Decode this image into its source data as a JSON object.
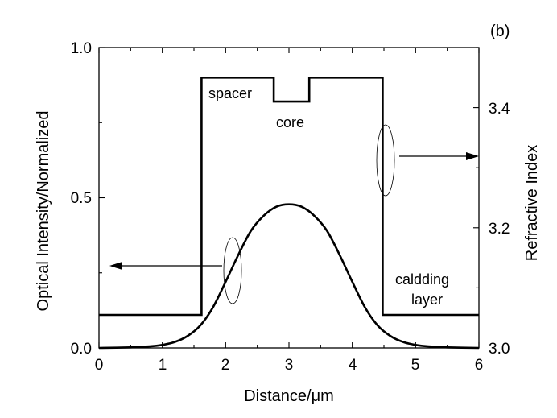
{
  "chart_data": {
    "type": "line",
    "panel_label": "(b)",
    "xlabel": "Distance/μm",
    "ylabel_left": "Optical Intensity/Normalized",
    "ylabel_right": "Refractive Index",
    "xlim": [
      0,
      6
    ],
    "ylim_left": [
      0,
      1
    ],
    "ylim_right": [
      3.0,
      3.5
    ],
    "x_ticks": [
      "0",
      "1",
      "2",
      "3",
      "4",
      "5",
      "6"
    ],
    "y_left_ticks": [
      "0.0",
      "0.5",
      "1.0"
    ],
    "y_right_ticks": [
      "3.0",
      "3.2",
      "3.4"
    ],
    "grid": false,
    "series": [
      {
        "axis": "right",
        "x": [
          0,
          1.62,
          1.62,
          2.76,
          2.76,
          3.32,
          3.32,
          4.48,
          4.48,
          6.0
        ],
        "y": [
          3.055,
          3.055,
          3.45,
          3.45,
          3.41,
          3.41,
          3.45,
          3.45,
          3.055,
          3.055
        ]
      },
      {
        "axis": "left",
        "x": [
          0,
          0.5,
          0.8,
          1.0,
          1.2,
          1.4,
          1.6,
          1.8,
          2.0,
          2.2,
          2.4,
          2.6,
          2.8,
          3.0,
          3.2,
          3.4,
          3.6,
          3.8,
          4.0,
          4.2,
          4.4,
          4.6,
          4.8,
          5.0,
          5.2,
          5.5,
          6.0
        ],
        "y": [
          0.0,
          0.002,
          0.005,
          0.01,
          0.02,
          0.04,
          0.075,
          0.135,
          0.22,
          0.31,
          0.39,
          0.44,
          0.47,
          0.478,
          0.47,
          0.44,
          0.39,
          0.31,
          0.22,
          0.135,
          0.075,
          0.04,
          0.02,
          0.01,
          0.005,
          0.002,
          0.0
        ]
      }
    ],
    "annotations": {
      "spacer": "spacer",
      "core": "core",
      "cladding_line1": "caldding",
      "cladding_line2": "layer"
    }
  }
}
